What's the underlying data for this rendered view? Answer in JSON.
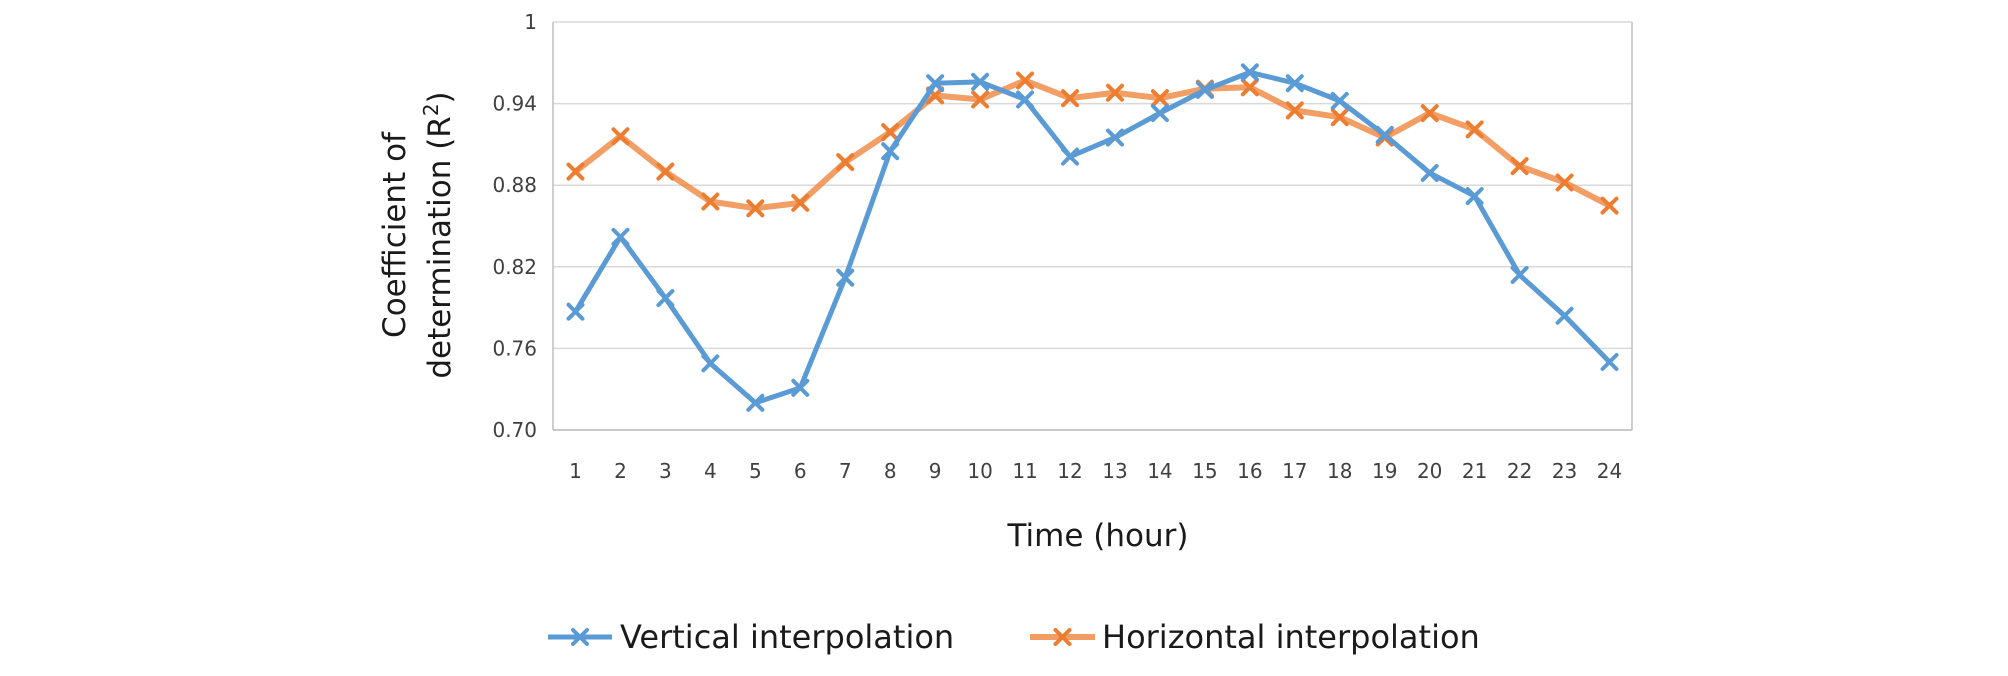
{
  "chart_data": {
    "type": "line",
    "xlabel": "Time (hour)",
    "ylabel_line1": "Coefficient of",
    "ylabel_line2_prefix": "determination (R",
    "ylabel_line2_sup": "2",
    "ylabel_line2_suffix": ")",
    "categories": [
      "1",
      "2",
      "3",
      "4",
      "5",
      "6",
      "7",
      "8",
      "9",
      "10",
      "11",
      "12",
      "13",
      "14",
      "15",
      "16",
      "17",
      "18",
      "19",
      "20",
      "21",
      "22",
      "23",
      "24"
    ],
    "ylim": [
      0.7,
      1.0
    ],
    "yticks": [
      0.7,
      0.76,
      0.82,
      0.88,
      0.94,
      1.0
    ],
    "ytick_labels": [
      "0.70",
      "0.76",
      "0.82",
      "0.88",
      "0.94",
      "1"
    ],
    "grid": true,
    "legend_position": "bottom",
    "series": [
      {
        "name": "Vertical interpolation",
        "color": "#5b9bd5",
        "marker": "x",
        "values": [
          0.787,
          0.842,
          0.797,
          0.749,
          0.72,
          0.731,
          0.812,
          0.905,
          0.955,
          0.956,
          0.943,
          0.901,
          0.915,
          0.933,
          0.95,
          0.963,
          0.955,
          0.942,
          0.917,
          0.889,
          0.872,
          0.814,
          0.784,
          0.75
        ]
      },
      {
        "name": "Horizontal interpolation",
        "color": "#ed7d31",
        "marker": "x",
        "values": [
          0.89,
          0.916,
          0.89,
          0.868,
          0.863,
          0.867,
          0.897,
          0.919,
          0.946,
          0.943,
          0.957,
          0.944,
          0.948,
          0.944,
          0.951,
          0.952,
          0.935,
          0.93,
          0.915,
          0.933,
          0.921,
          0.894,
          0.882,
          0.865
        ]
      }
    ]
  }
}
